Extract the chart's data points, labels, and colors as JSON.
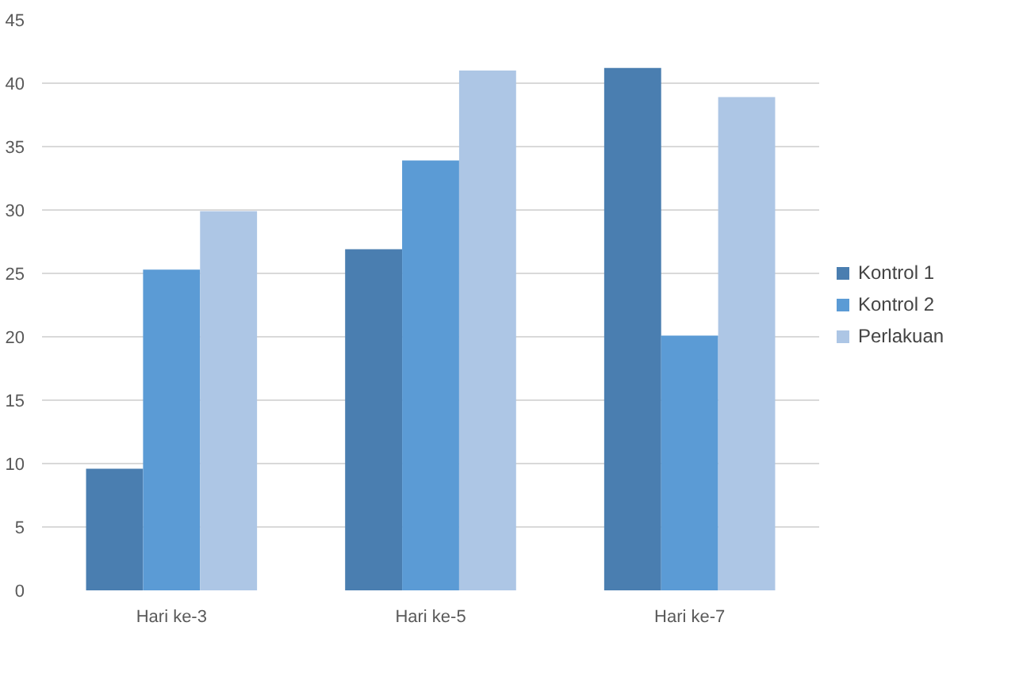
{
  "chart_data": {
    "type": "bar",
    "categories": [
      "Hari ke-3",
      "Hari ke-5",
      "Hari ke-7"
    ],
    "series": [
      {
        "name": "Kontrol 1",
        "color": "#4a7eb0",
        "values": [
          9.6,
          26.9,
          41.2
        ]
      },
      {
        "name": "Kontrol 2",
        "color": "#5b9bd5",
        "values": [
          25.3,
          33.9,
          20.1
        ]
      },
      {
        "name": "Perlakuan",
        "color": "#adc6e5",
        "values": [
          29.9,
          41.0,
          38.9
        ]
      }
    ],
    "ylim": [
      0,
      45
    ],
    "yticks": [
      0,
      5,
      10,
      15,
      20,
      25,
      30,
      35,
      40,
      45
    ],
    "grid": "y",
    "legend": "right"
  }
}
